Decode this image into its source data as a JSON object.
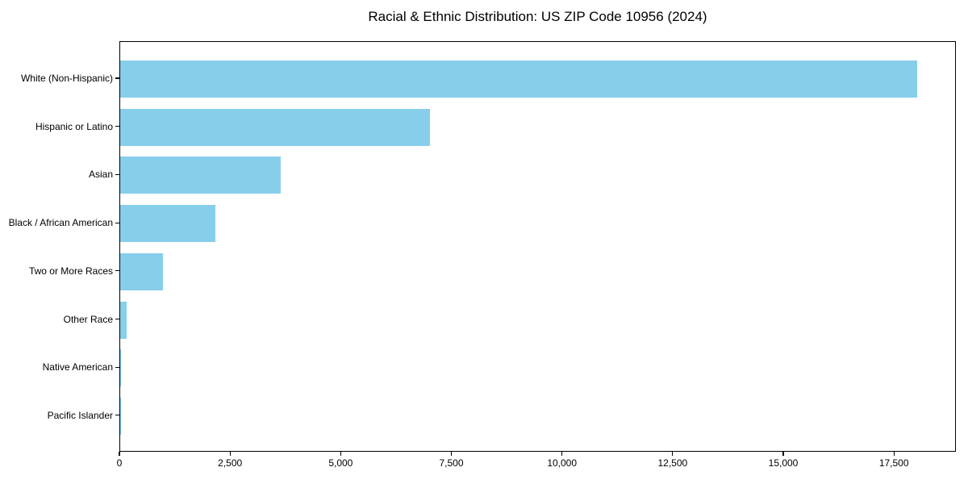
{
  "title": "Racial & Ethnic Distribution: US ZIP Code 10956 (2024)",
  "colors": {
    "bar": "#87CEEB",
    "axis": "#000000",
    "text": "#000000",
    "background": "#FFFFFF"
  },
  "chart_data": {
    "type": "bar",
    "orientation": "horizontal",
    "title": "Racial & Ethnic Distribution: US ZIP Code 10956 (2024)",
    "xlabel": "",
    "ylabel": "",
    "categories": [
      "White (Non-Hispanic)",
      "Hispanic or Latino",
      "Asian",
      "Black / African American",
      "Two or More Races",
      "Other Race",
      "Native American",
      "Pacific Islander"
    ],
    "values": [
      18000,
      7000,
      3630,
      2150,
      960,
      150,
      25,
      5
    ],
    "xlim": [
      0,
      18900
    ],
    "xticks": [
      0,
      2500,
      5000,
      7500,
      10000,
      12500,
      15000,
      17500
    ],
    "xtick_labels": [
      "0",
      "2,500",
      "5,000",
      "7,500",
      "10,000",
      "12,500",
      "15,000",
      "17,500"
    ],
    "bar_color": "#87CEEB",
    "grid": false,
    "legend": false
  }
}
